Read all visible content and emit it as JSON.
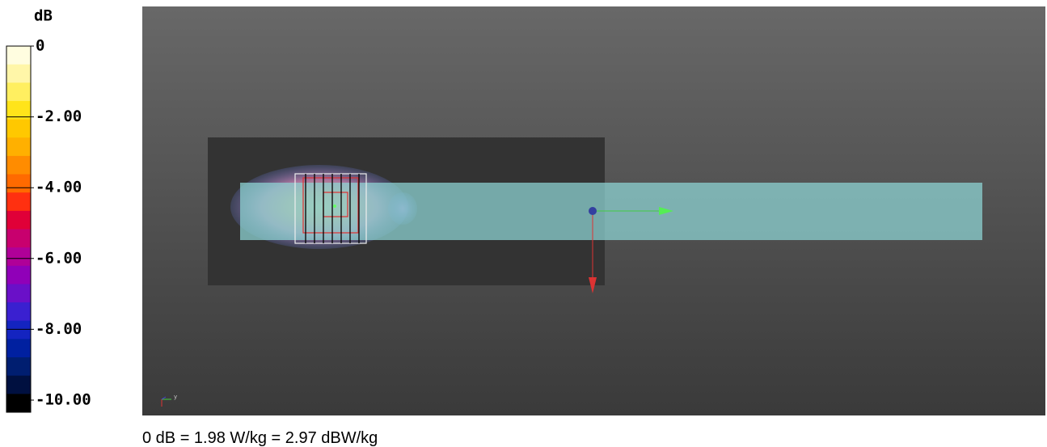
{
  "colorbar": {
    "unit": "dB",
    "ticks": [
      "0",
      "-2.00",
      "-4.00",
      "-6.00",
      "-8.00",
      "-10.00"
    ]
  },
  "viewport": {
    "axis_label": "y"
  },
  "footer": "0 dB = 1.98 W/kg = 2.97 dBW/kg"
}
